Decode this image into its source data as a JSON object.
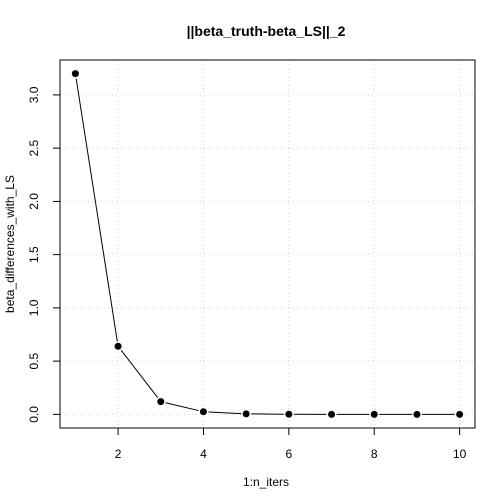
{
  "chart_data": {
    "type": "line",
    "title": "||beta_truth-beta_LS||_2",
    "xlabel": "1:n_iters",
    "ylabel": "beta_differences_with_LS",
    "x": [
      1,
      2,
      3,
      4,
      5,
      6,
      7,
      8,
      9,
      10
    ],
    "series": [
      {
        "values": [
          3.2,
          0.64,
          0.12,
          0.025,
          0.005,
          0.001,
          0.0,
          0.0,
          0.0,
          0.0
        ]
      }
    ],
    "xticks": [
      2,
      4,
      6,
      8,
      10
    ],
    "yticks": [
      0.0,
      0.5,
      1.0,
      1.5,
      2.0,
      2.5,
      3.0
    ],
    "xtick_labels": [
      "2",
      "4",
      "6",
      "8",
      "10"
    ],
    "ytick_labels": [
      "0.0",
      "0.5",
      "1.0",
      "1.5",
      "2.0",
      "2.5",
      "3.0"
    ],
    "xlim": [
      0.64,
      10.36
    ],
    "ylim": [
      -0.128,
      3.328
    ],
    "grid": true,
    "grid_style": "dotted light gray",
    "marker": "filled circle",
    "line_color": "#000000",
    "marker_color": "#000000"
  }
}
